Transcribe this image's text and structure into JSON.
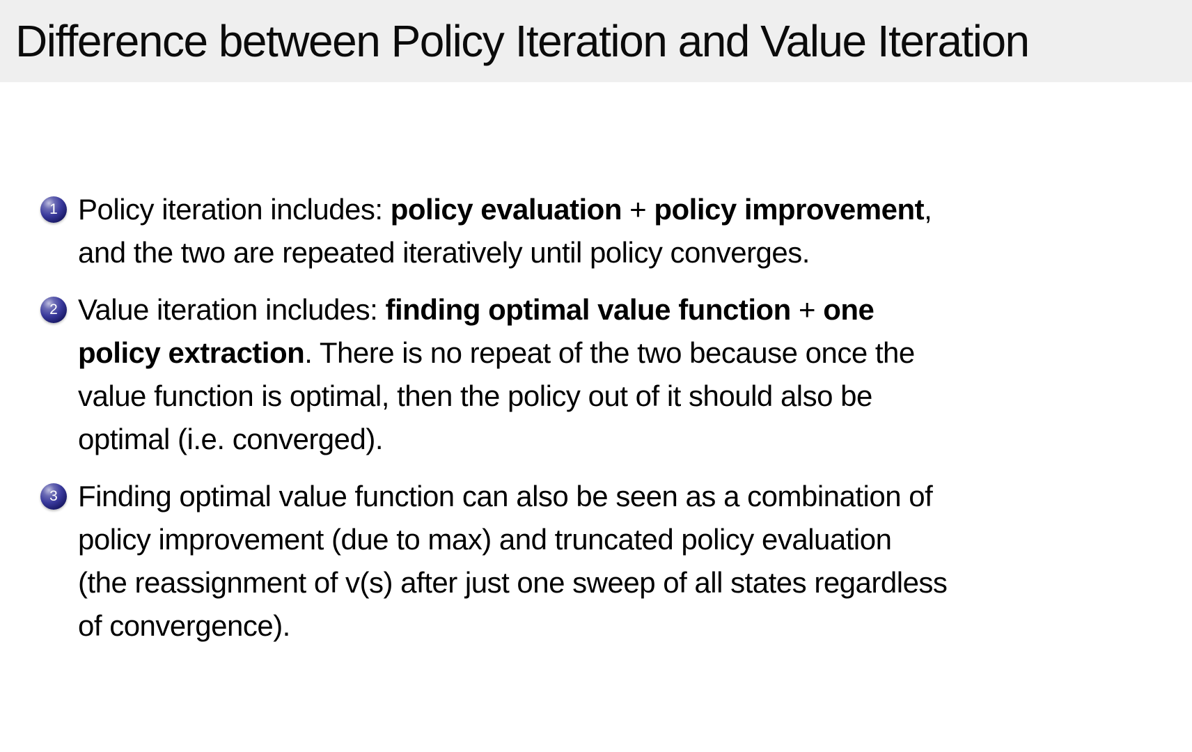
{
  "slide": {
    "title": "Difference between Policy Iteration and Value Iteration",
    "items": [
      {
        "number": "1",
        "segments": [
          {
            "text": "Policy iteration includes: ",
            "bold": false
          },
          {
            "text": "policy evaluation",
            "bold": true
          },
          {
            "text": " + ",
            "bold": false
          },
          {
            "text": "policy improvement",
            "bold": true
          },
          {
            "text": ",\nand the two are repeated iteratively until policy converges.",
            "bold": false
          }
        ]
      },
      {
        "number": "2",
        "segments": [
          {
            "text": "Value iteration includes: ",
            "bold": false
          },
          {
            "text": "finding optimal value function",
            "bold": true
          },
          {
            "text": " + ",
            "bold": false
          },
          {
            "text": "one\npolicy extraction",
            "bold": true
          },
          {
            "text": ". There is no repeat of the two because once the\nvalue function is optimal, then the policy out of it should also be\noptimal (i.e. converged).",
            "bold": false
          }
        ]
      },
      {
        "number": "3",
        "segments": [
          {
            "text": "Finding optimal value function can also be seen as a combination of\npolicy improvement (due to max) and truncated policy evaluation\n(the reassignment of v(s) after just one sweep of all states regardless\nof convergence).",
            "bold": false
          }
        ]
      }
    ]
  },
  "colors": {
    "page_bg": "#ffffff",
    "title_bar_bg": "#efefef",
    "title_text": "#0b0b0b",
    "body_text": "#000000",
    "ball_light": "#c0c0e0",
    "ball_mid": "#3a3a9c",
    "ball_dark": "#14145e",
    "ball_number": "#ffffff"
  }
}
